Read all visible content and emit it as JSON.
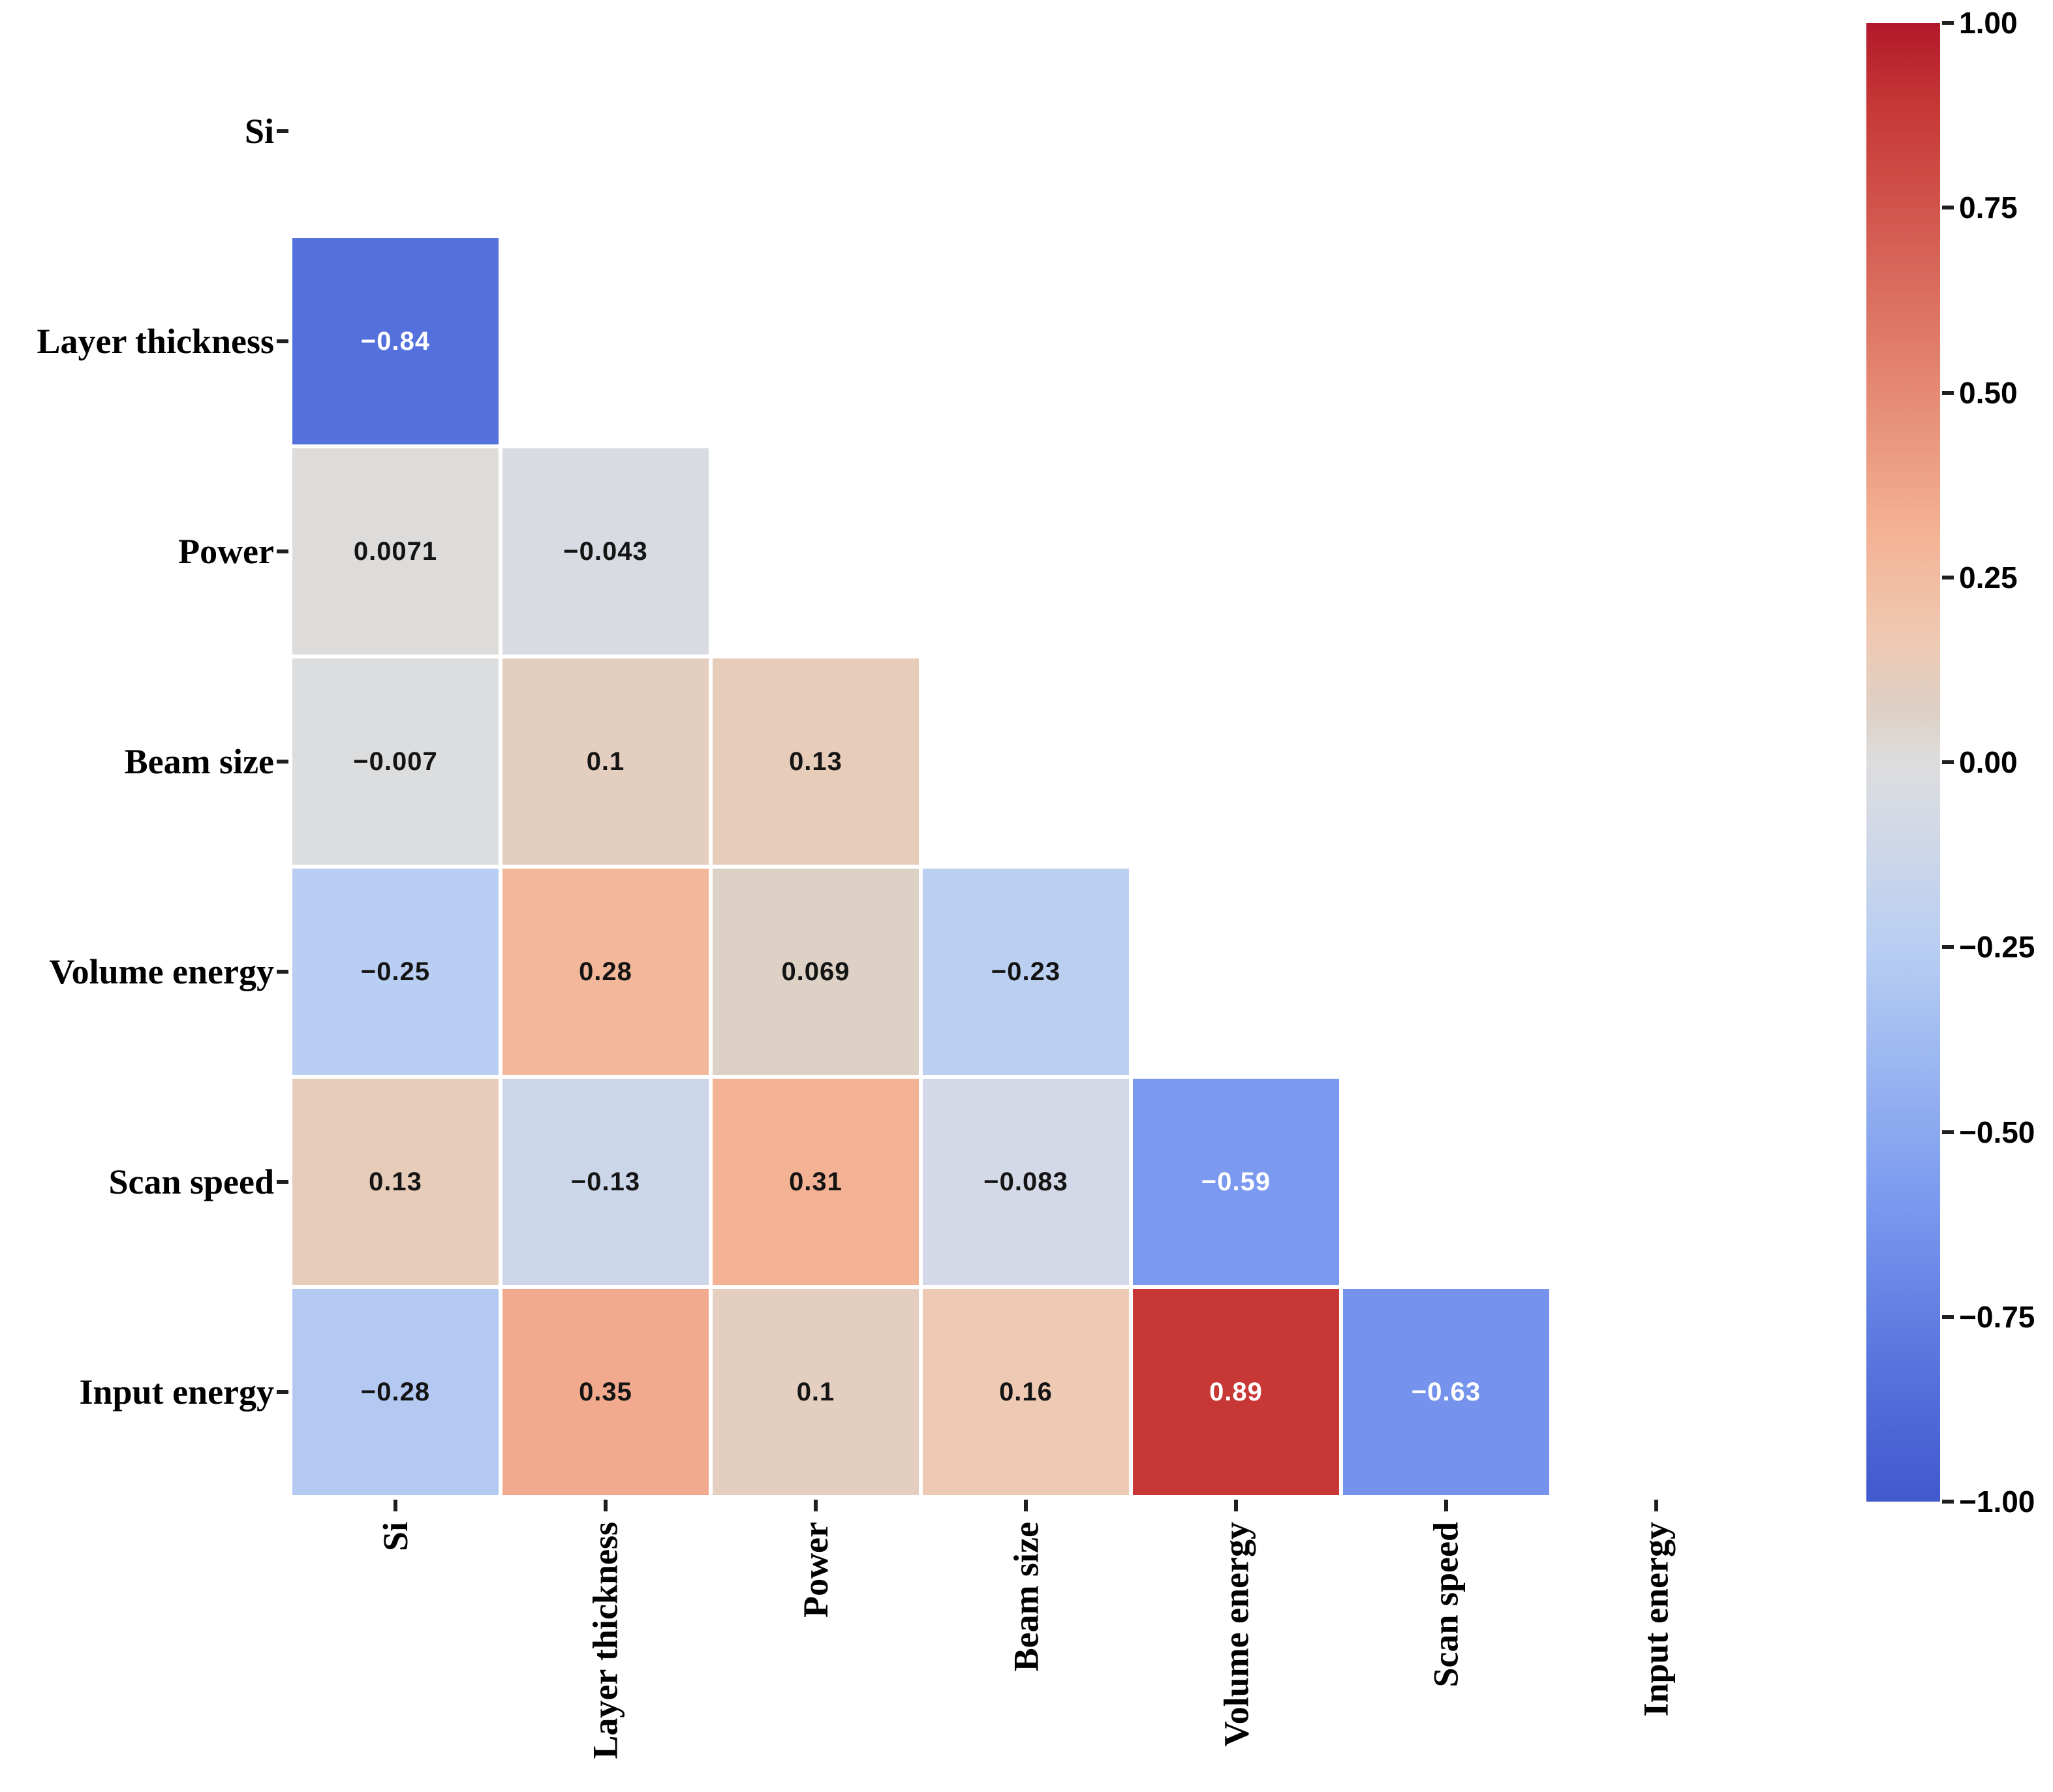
{
  "chart_data": {
    "type": "heatmap",
    "subtype": "correlation-matrix-lower-triangle",
    "title": "",
    "variables": [
      "Si",
      "Layer thickness",
      "Power",
      "Beam size",
      "Volume energy",
      "Scan speed",
      "Input energy"
    ],
    "x_tick_labels": [
      "Si",
      "Layer thickness",
      "Power",
      "Beam size",
      "Volume energy",
      "Scan speed",
      "Input energy"
    ],
    "y_tick_labels": [
      "Si",
      "Layer thickness",
      "Power",
      "Beam size",
      "Volume energy",
      "Scan speed",
      "Input energy"
    ],
    "grid": false,
    "cells": [
      {
        "row": "Layer thickness",
        "col": "Si",
        "row_index": 1,
        "col_index": 0,
        "value": -0.84,
        "label": "−0.84"
      },
      {
        "row": "Power",
        "col": "Si",
        "row_index": 2,
        "col_index": 0,
        "value": 0.0071,
        "label": "0.0071"
      },
      {
        "row": "Power",
        "col": "Layer thickness",
        "row_index": 2,
        "col_index": 1,
        "value": -0.043,
        "label": "−0.043"
      },
      {
        "row": "Beam size",
        "col": "Si",
        "row_index": 3,
        "col_index": 0,
        "value": -0.007,
        "label": "−0.007"
      },
      {
        "row": "Beam size",
        "col": "Layer thickness",
        "row_index": 3,
        "col_index": 1,
        "value": 0.1,
        "label": "0.1"
      },
      {
        "row": "Beam size",
        "col": "Power",
        "row_index": 3,
        "col_index": 2,
        "value": 0.13,
        "label": "0.13"
      },
      {
        "row": "Volume energy",
        "col": "Si",
        "row_index": 4,
        "col_index": 0,
        "value": -0.25,
        "label": "−0.25"
      },
      {
        "row": "Volume energy",
        "col": "Layer thickness",
        "row_index": 4,
        "col_index": 1,
        "value": 0.28,
        "label": "0.28"
      },
      {
        "row": "Volume energy",
        "col": "Power",
        "row_index": 4,
        "col_index": 2,
        "value": 0.069,
        "label": "0.069"
      },
      {
        "row": "Volume energy",
        "col": "Beam size",
        "row_index": 4,
        "col_index": 3,
        "value": -0.23,
        "label": "−0.23"
      },
      {
        "row": "Scan speed",
        "col": "Si",
        "row_index": 5,
        "col_index": 0,
        "value": 0.13,
        "label": "0.13"
      },
      {
        "row": "Scan speed",
        "col": "Layer thickness",
        "row_index": 5,
        "col_index": 1,
        "value": -0.13,
        "label": "−0.13"
      },
      {
        "row": "Scan speed",
        "col": "Power",
        "row_index": 5,
        "col_index": 2,
        "value": 0.31,
        "label": "0.31"
      },
      {
        "row": "Scan speed",
        "col": "Beam size",
        "row_index": 5,
        "col_index": 3,
        "value": -0.083,
        "label": "−0.083"
      },
      {
        "row": "Scan speed",
        "col": "Volume energy",
        "row_index": 5,
        "col_index": 4,
        "value": -0.59,
        "label": "−0.59"
      },
      {
        "row": "Input energy",
        "col": "Si",
        "row_index": 6,
        "col_index": 0,
        "value": -0.28,
        "label": "−0.28"
      },
      {
        "row": "Input energy",
        "col": "Layer thickness",
        "row_index": 6,
        "col_index": 1,
        "value": 0.35,
        "label": "0.35"
      },
      {
        "row": "Input energy",
        "col": "Power",
        "row_index": 6,
        "col_index": 2,
        "value": 0.1,
        "label": "0.1"
      },
      {
        "row": "Input energy",
        "col": "Beam size",
        "row_index": 6,
        "col_index": 3,
        "value": 0.16,
        "label": "0.16"
      },
      {
        "row": "Input energy",
        "col": "Volume energy",
        "row_index": 6,
        "col_index": 4,
        "value": 0.89,
        "label": "0.89"
      },
      {
        "row": "Input energy",
        "col": "Scan speed",
        "row_index": 6,
        "col_index": 5,
        "value": -0.63,
        "label": "−0.63"
      }
    ],
    "colorbar": {
      "vmin": -1.0,
      "vmax": 1.0,
      "ticks": [
        "1.00",
        "0.75",
        "0.50",
        "0.25",
        "0.00",
        "−0.25",
        "−0.50",
        "−0.75",
        "−1.00"
      ],
      "colormap_name": "coolwarm",
      "colormap_anchors": [
        {
          "v": -1.0,
          "color": "#4258cd"
        },
        {
          "v": -0.84,
          "color": "#5470dc"
        },
        {
          "v": -0.59,
          "color": "#7b9aef"
        },
        {
          "v": -0.25,
          "color": "#b8cef2"
        },
        {
          "v": -0.083,
          "color": "#d3d9e6"
        },
        {
          "v": 0.0,
          "color": "#dddddd"
        },
        {
          "v": 0.069,
          "color": "#ddd0c5"
        },
        {
          "v": 0.16,
          "color": "#eecab4"
        },
        {
          "v": 0.31,
          "color": "#f4b294"
        },
        {
          "v": 0.89,
          "color": "#c63735"
        },
        {
          "v": 1.0,
          "color": "#b2182b"
        }
      ]
    },
    "annotation_text_colors": {
      "dark": "#141414",
      "light": "#ffffff"
    },
    "background_color": "#ffffff"
  }
}
